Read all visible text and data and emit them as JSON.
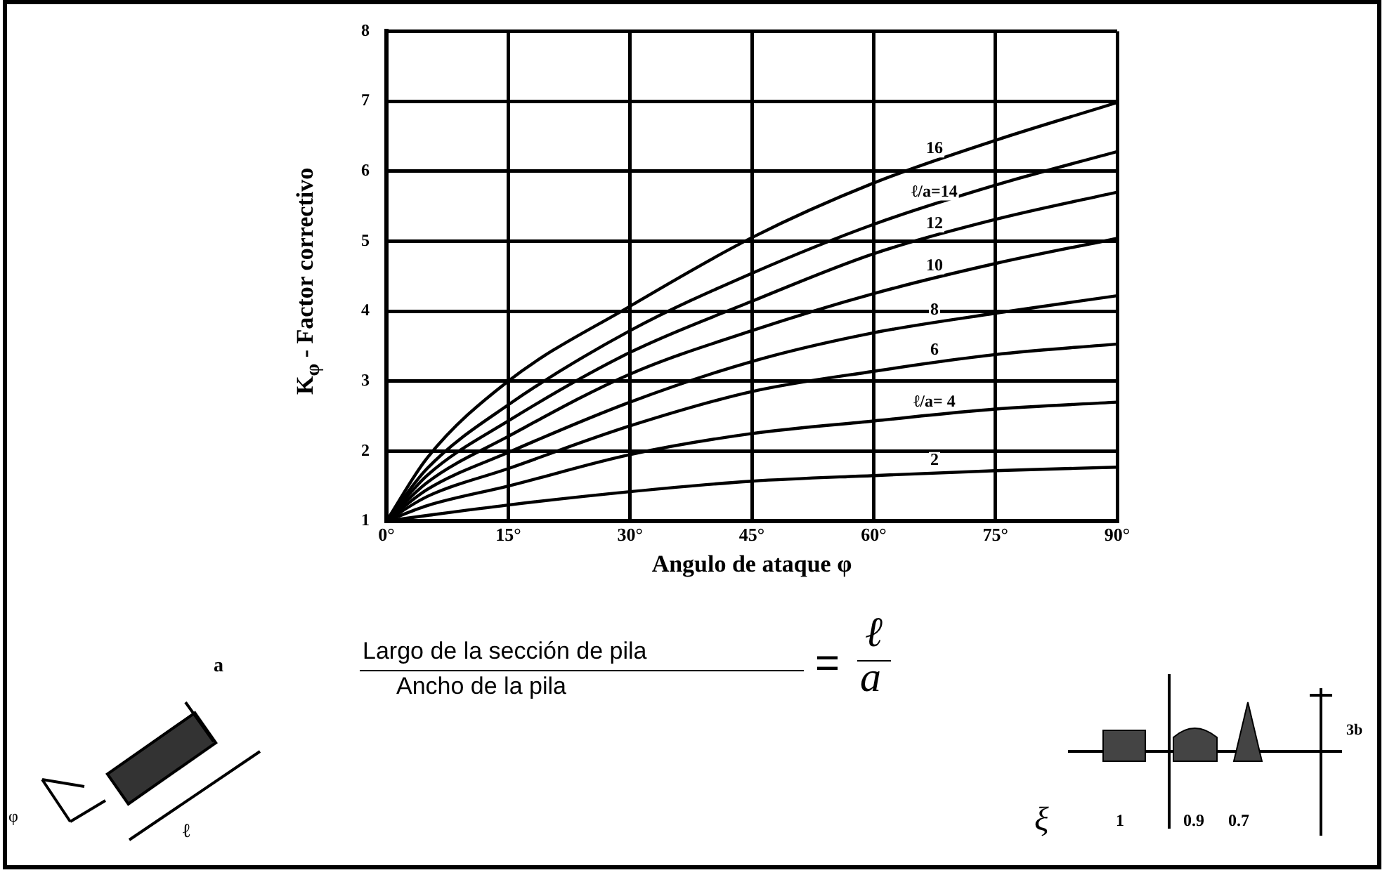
{
  "chart_data": {
    "type": "line",
    "xlabel": "Angulo de ataque φ",
    "ylabel": "K$_{φ}$ - Factor correctivo",
    "x": [
      0,
      5,
      15,
      30,
      45,
      60,
      75,
      90
    ],
    "series": [
      {
        "name": "16",
        "color": "#000000",
        "values": [
          1,
          1.9,
          3.0,
          4.07,
          5.05,
          5.83,
          6.44,
          6.98
        ]
      },
      {
        "name": "ℓ/a=14",
        "color": "#000000",
        "values": [
          1,
          1.75,
          2.66,
          3.72,
          4.54,
          5.24,
          5.8,
          6.28
        ]
      },
      {
        "name": "12",
        "color": "#000000",
        "values": [
          1,
          1.65,
          2.43,
          3.41,
          4.14,
          4.82,
          5.31,
          5.7
        ]
      },
      {
        "name": "10",
        "color": "#000000",
        "values": [
          1,
          1.55,
          2.21,
          3.1,
          3.72,
          4.25,
          4.68,
          5.04
        ]
      },
      {
        "name": "8",
        "color": "#000000",
        "values": [
          1,
          1.45,
          1.98,
          2.7,
          3.28,
          3.69,
          3.97,
          4.22
        ]
      },
      {
        "name": "6",
        "color": "#000000",
        "values": [
          1,
          1.35,
          1.75,
          2.36,
          2.85,
          3.14,
          3.38,
          3.53
        ]
      },
      {
        "name": "ℓ/a= 4",
        "color": "#000000",
        "values": [
          1,
          1.22,
          1.5,
          1.95,
          2.25,
          2.43,
          2.6,
          2.7
        ]
      },
      {
        "name": "2",
        "color": "#000000",
        "values": [
          1,
          1.08,
          1.23,
          1.42,
          1.57,
          1.65,
          1.72,
          1.77
        ]
      }
    ],
    "xlim": [
      0,
      90
    ],
    "xticks": [
      {
        "value": 0,
        "label": "0°"
      },
      {
        "value": 15,
        "label": "15°"
      },
      {
        "value": 30,
        "label": "30°"
      },
      {
        "value": 45,
        "label": "45°"
      },
      {
        "value": 60,
        "label": "60°"
      },
      {
        "value": 75,
        "label": "75°"
      },
      {
        "value": 90,
        "label": "90°"
      }
    ],
    "ylim": [
      1,
      8
    ],
    "yticks": [
      1,
      2,
      3,
      4,
      5,
      6,
      7,
      8
    ],
    "grid": true,
    "legend": false,
    "marker": "none",
    "line_style": "solid",
    "annotations": [
      "Largo de la sección de pila",
      "Ancho de la pila",
      "=",
      "ℓ",
      "a",
      "ξ",
      "1",
      "0.9",
      "0.7",
      "3b",
      "a",
      "ℓ",
      "φ"
    ]
  }
}
